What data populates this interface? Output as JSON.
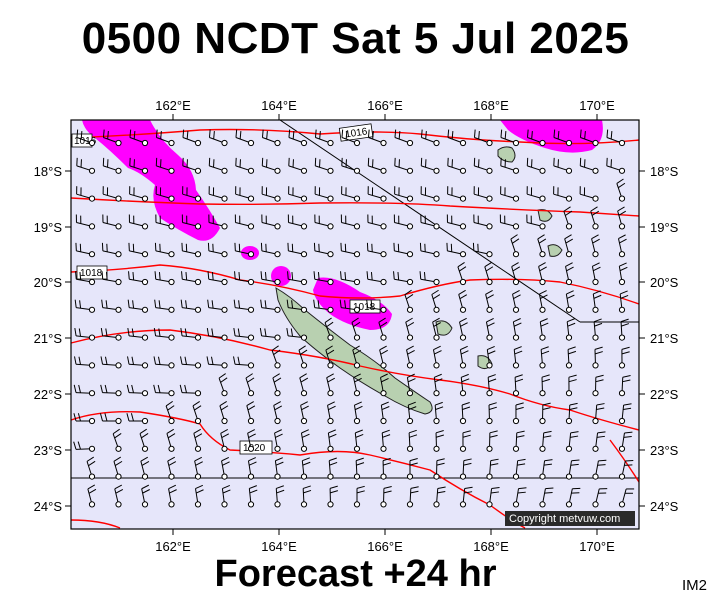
{
  "title": "0500 NCDT Sat 5 Jul 2025",
  "subtitle": "Forecast +24 hr",
  "image_tag": "IM2",
  "copyright": "Copyright metvuw.com",
  "lon_labels": [
    "162°E",
    "164°E",
    "166°E",
    "168°E",
    "170°E"
  ],
  "lat_labels": [
    "18°S",
    "19°S",
    "20°S",
    "21°S",
    "22°S",
    "23°S",
    "24°S"
  ],
  "isobar_labels": [
    "1016",
    "1016",
    "1018",
    "1018",
    "1020"
  ],
  "colors": {
    "ocean": "#e6e6fa",
    "precip": "#ff00ff",
    "isobar": "#ff0000",
    "land": "#b8d0b0"
  }
}
